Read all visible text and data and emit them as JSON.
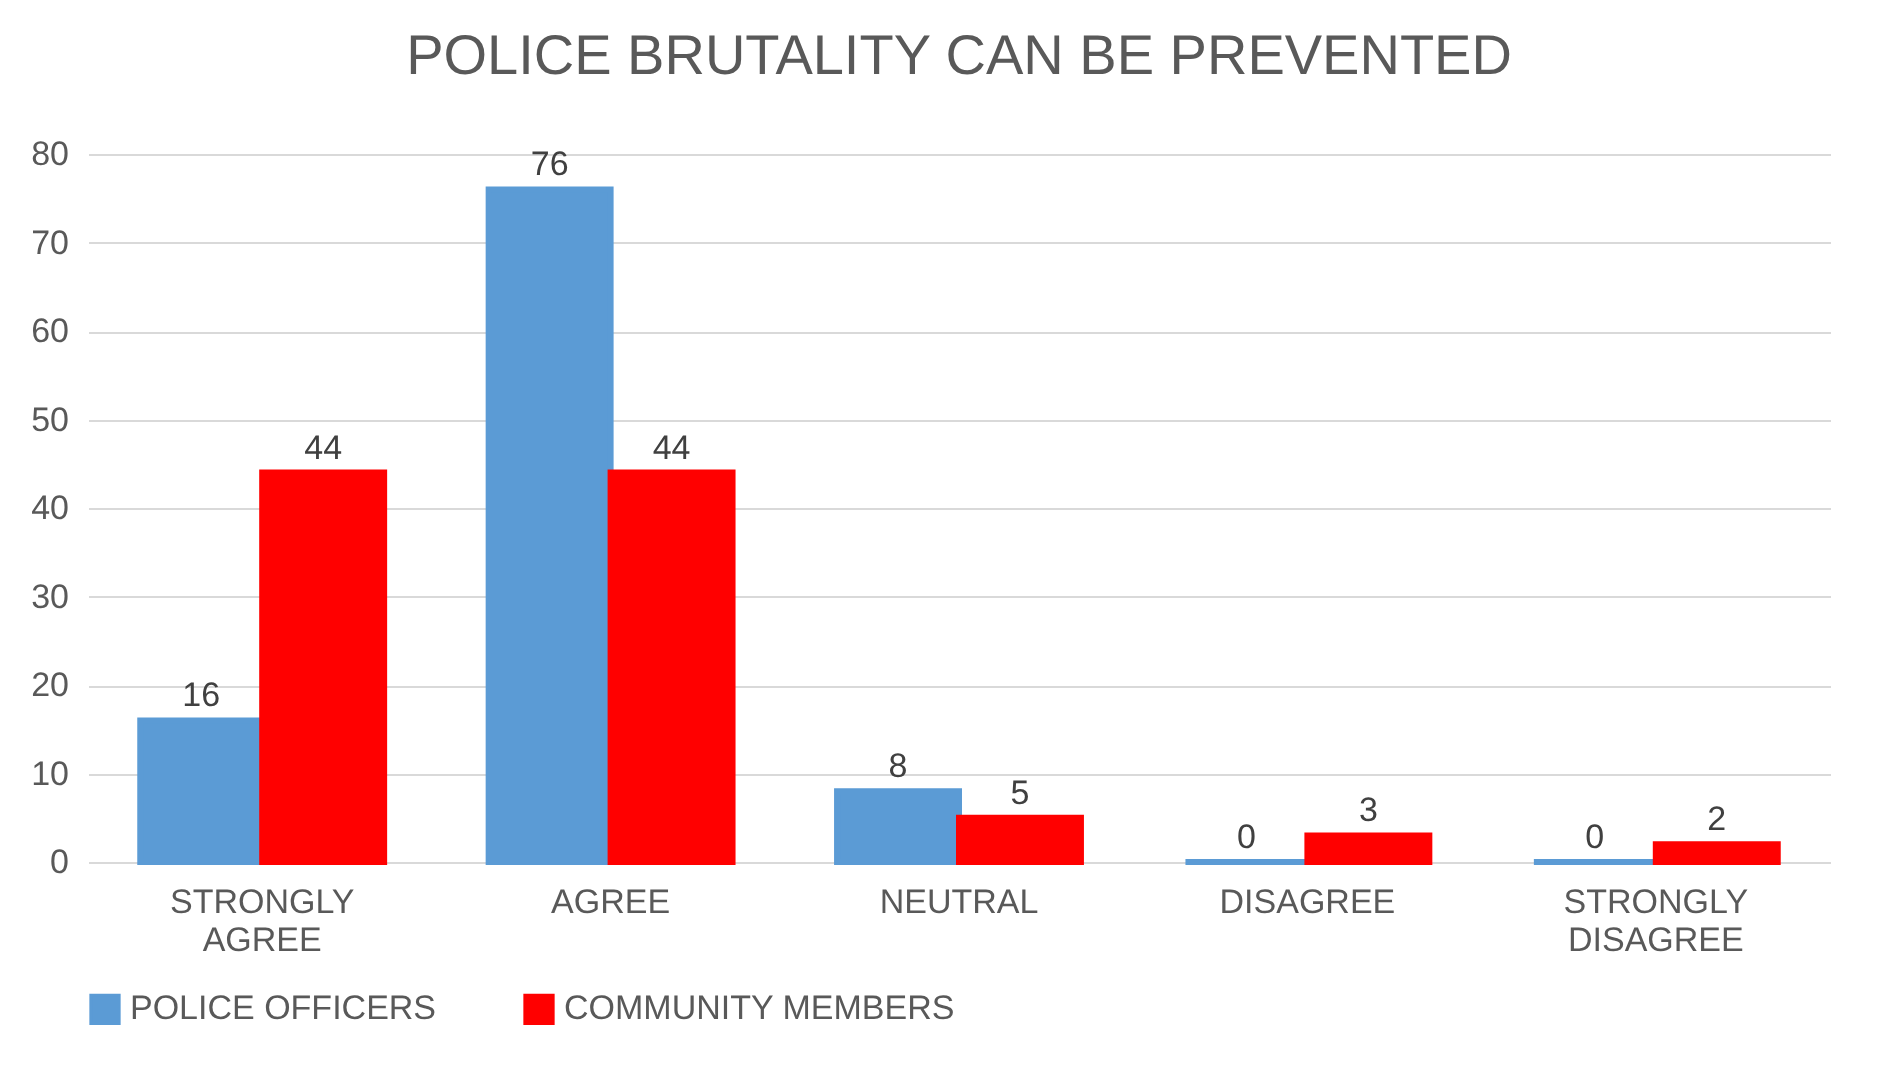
{
  "chart_data": {
    "type": "bar",
    "title": "POLICE BRUTALITY CAN BE PREVENTED",
    "categories": [
      "STRONGLY AGREE",
      "AGREE",
      "NEUTRAL",
      "DISAGREE",
      "STRONGLY DISAGREE"
    ],
    "series": [
      {
        "name": "POLICE OFFICERS",
        "color": "#5b9bd5",
        "values": [
          16,
          76,
          8,
          0,
          0
        ]
      },
      {
        "name": "COMMUNITY MEMBERS",
        "color": "#ff0000",
        "values": [
          44,
          44,
          5,
          3,
          2
        ]
      }
    ],
    "ylim": [
      0,
      80
    ],
    "yticks": [
      0,
      10,
      20,
      30,
      40,
      50,
      60,
      70,
      80
    ],
    "grid": "y",
    "legend": "bottom",
    "data_labels": true
  }
}
